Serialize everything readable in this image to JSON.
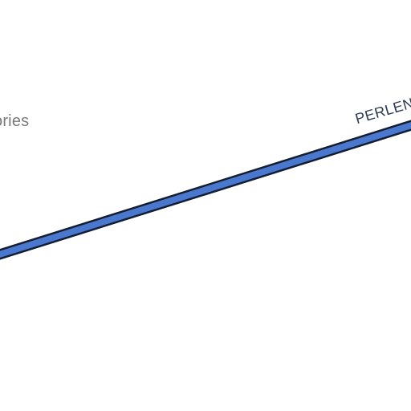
{
  "map": {
    "poi_label": "ories",
    "road": {
      "label": "PERLEN",
      "fill_color": "#4a78cf",
      "casing_color": "#141e32"
    },
    "label_colors": {
      "poi": "#7a7a7a",
      "road": "#2c3a55"
    }
  }
}
